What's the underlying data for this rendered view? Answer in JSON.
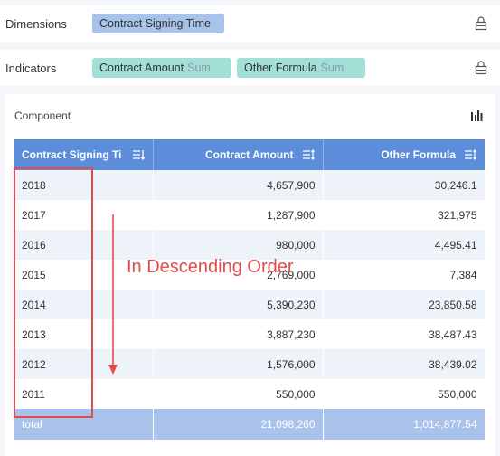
{
  "dimensions": {
    "label": "Dimensions",
    "field": "Contract Signing Time"
  },
  "indicators": {
    "label": "Indicators",
    "fields": [
      {
        "name": "Contract Amount",
        "agg": "Sum"
      },
      {
        "name": "Other Formula",
        "agg": "Sum"
      }
    ]
  },
  "component": {
    "title": "Component",
    "icon": "column-chart-icon"
  },
  "table": {
    "columns": [
      "Contract Signing Ti",
      "Contract Amount",
      "Other Formula"
    ],
    "rows": [
      [
        "2018",
        "4,657,900",
        "30,246.1"
      ],
      [
        "2017",
        "1,287,900",
        "321,975"
      ],
      [
        "2016",
        "980,000",
        "4,495.41"
      ],
      [
        "2015",
        "2,769,000",
        "7,384"
      ],
      [
        "2014",
        "5,390,230",
        "23,850.58"
      ],
      [
        "2013",
        "3,887,230",
        "38,487.43"
      ],
      [
        "2012",
        "1,576,000",
        "38,439.02"
      ],
      [
        "2011",
        "550,000",
        "550,000"
      ]
    ],
    "total": [
      "total",
      "21,098,260",
      "1,014,877.54"
    ]
  },
  "annotation": {
    "text": "In Descending Order",
    "color": "#e14b4b"
  },
  "colors": {
    "header": "#5b8ddb",
    "total_row": "#a8c2eb",
    "dimension_pill": "#a8c3ea",
    "indicator_pill": "#a3dfd6"
  }
}
